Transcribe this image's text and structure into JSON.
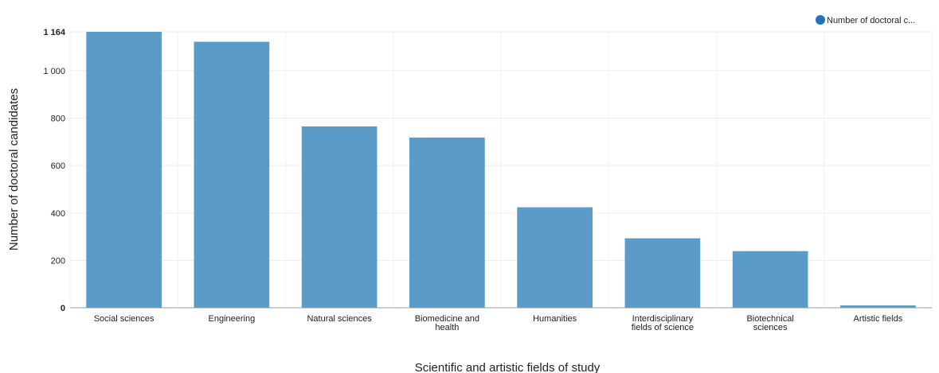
{
  "chart_data": {
    "type": "bar",
    "categories": [
      [
        "Social sciences"
      ],
      [
        "Engineering"
      ],
      [
        "Natural sciences"
      ],
      [
        "Biomedicine and",
        "health"
      ],
      [
        "Humanities"
      ],
      [
        "Interdisciplinary",
        "fields of science"
      ],
      [
        "Biotechnical",
        "sciences"
      ],
      [
        "Artistic fields"
      ]
    ],
    "series": [
      {
        "name": "Number of doctoral c...",
        "values": [
          1164,
          1122,
          765,
          718,
          424,
          293,
          239,
          10
        ],
        "color": "#5b9bc8"
      }
    ],
    "xlabel": "Scientific and artistic fields of study",
    "ylabel": "Number of doctoral candidates",
    "ylim": [
      0,
      1164
    ],
    "yticks": [
      {
        "value": 0,
        "label": "0",
        "bold": true
      },
      {
        "value": 200,
        "label": "200",
        "bold": false
      },
      {
        "value": 400,
        "label": "400",
        "bold": false
      },
      {
        "value": 600,
        "label": "600",
        "bold": false
      },
      {
        "value": 800,
        "label": "800",
        "bold": false
      },
      {
        "value": 1000,
        "label": "1 000",
        "bold": false
      },
      {
        "value": 1164,
        "label": "1 164",
        "bold": true
      }
    ],
    "grid": true,
    "legend": {
      "position": "top-right",
      "marker_color": "#1f73b7"
    }
  }
}
